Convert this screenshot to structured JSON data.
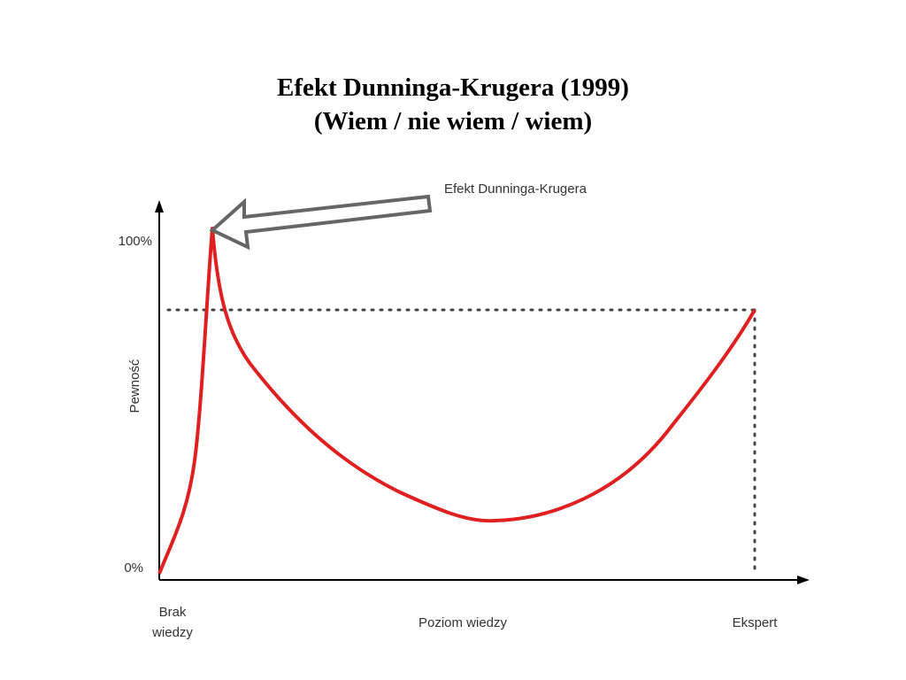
{
  "title": {
    "lines": [
      "Efekt Dunninga-Krugera (1999)",
      "(Wiem / nie wiem / wiem)"
    ]
  },
  "annotation": "Efekt Dunninga-Krugera",
  "y_axis": {
    "label": "Pewność",
    "top": "100%",
    "bottom": "0%"
  },
  "x_axis": {
    "label": "Poziom wiedzy",
    "start": [
      "Brak",
      "wiedzy"
    ],
    "end": "Ekspert"
  }
}
